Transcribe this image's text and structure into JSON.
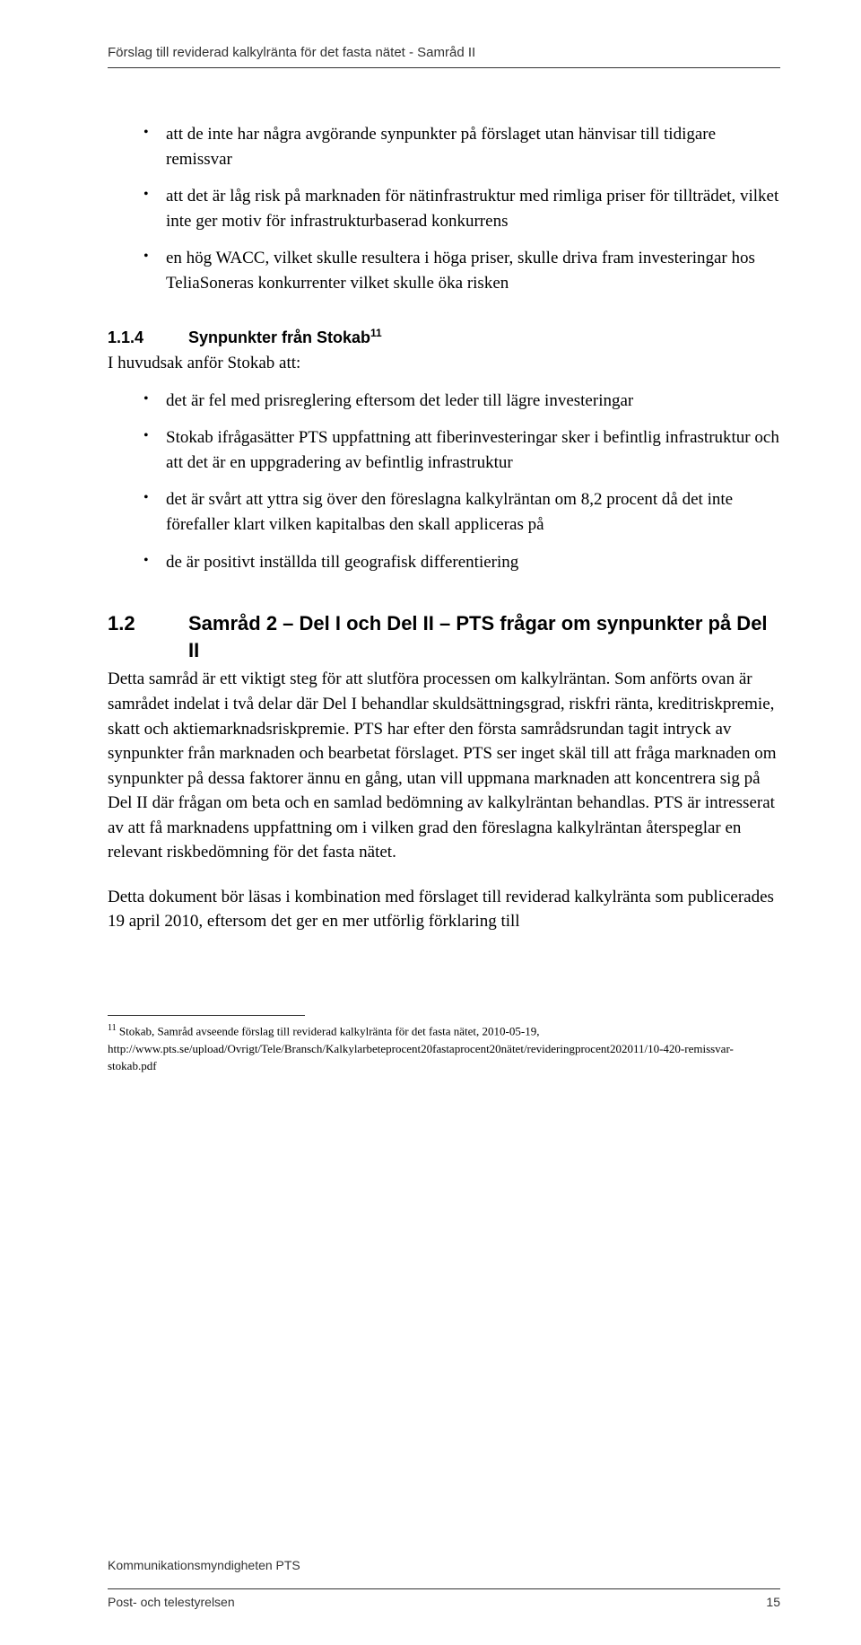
{
  "header": {
    "title": "Förslag till reviderad kalkylränta för det fasta nätet - Samråd II"
  },
  "list1": {
    "items": [
      "att de inte har några avgörande synpunkter på förslaget utan hänvisar till tidigare remissvar",
      "att det är låg risk på marknaden för nätinfrastruktur med rimliga priser för tillträdet, vilket inte ger motiv för infrastrukturbaserad konkurrens",
      "en hög WACC, vilket skulle resultera i höga priser, skulle driva fram investeringar hos TeliaSoneras konkurrenter vilket skulle öka risken"
    ]
  },
  "subsection": {
    "num": "1.1.4",
    "title": "Synpunkter från Stokab",
    "sup": "11",
    "intro": "I huvudsak anför Stokab att:"
  },
  "list2": {
    "items": [
      "det är fel med prisreglering eftersom det leder till lägre investeringar",
      "Stokab ifrågasätter PTS uppfattning att fiberinvesteringar sker i befintlig infrastruktur och att det är en uppgradering av befintlig infrastruktur",
      "det är svårt att yttra sig över den föreslagna kalkylräntan om 8,2 procent då det inte förefaller klart vilken kapitalbas den skall appliceras på",
      "de är positivt inställda till geografisk differentiering"
    ]
  },
  "section": {
    "num": "1.2",
    "title": "Samråd 2 – Del I och Del II – PTS frågar om synpunkter på Del II"
  },
  "para1": "Detta samråd är ett viktigt steg för att slutföra processen om kalkylräntan. Som anförts ovan är samrådet indelat i två delar där Del I behandlar skuldsättningsgrad, riskfri ränta, kreditriskpremie, skatt och aktiemarknadsriskpremie. PTS har efter den första samrådsrundan tagit intryck av synpunkter från marknaden och bearbetat förslaget. PTS ser inget skäl till att fråga marknaden om synpunkter på dessa faktorer ännu en gång, utan vill uppmana marknaden att koncentrera sig på Del II där frågan om beta och en samlad bedömning av kalkylräntan behandlas. PTS är intresserat av att få marknadens uppfattning om i vilken grad den föreslagna kalkylräntan återspeglar en relevant riskbedömning för det fasta nätet.",
  "para2": "Detta dokument bör läsas i kombination med förslaget till reviderad kalkylränta som publicerades 19 april 2010, eftersom det ger en mer utförlig förklaring till",
  "footnote": {
    "num": "11",
    "text": "Stokab,  Samråd avseende förslag till reviderad kalkylränta för det fasta nätet, 2010-05-19, http://www.pts.se/upload/Ovrigt/Tele/Bransch/Kalkylarbeteprocent20fastaprocent20nätet/revideringprocent202011/10-420-remissvar-stokab.pdf"
  },
  "footer": {
    "line1": "Kommunikationsmyndigheten PTS",
    "line2_left": "Post- och telestyrelsen",
    "line2_right": "15"
  }
}
